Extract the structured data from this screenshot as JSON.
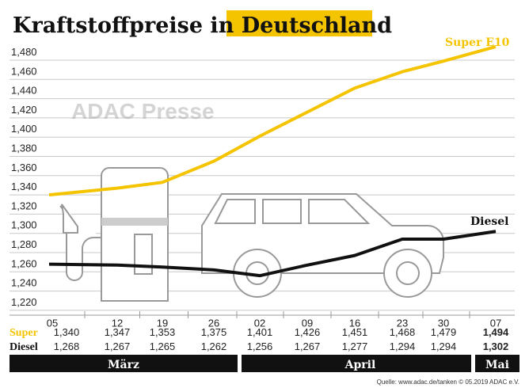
{
  "chart_data": {
    "type": "line",
    "title": "Kraftstoffpreise in ",
    "title_highlight": "Deutschland",
    "categories": [
      "05",
      "12",
      "19",
      "26",
      "02",
      "09",
      "16",
      "23",
      "30",
      "07"
    ],
    "months": [
      "März",
      "April",
      "Mai"
    ],
    "yticks": [
      "1,220",
      "1,240",
      "1,260",
      "1,280",
      "1,300",
      "1,320",
      "1,340",
      "1,360",
      "1,380",
      "1,400",
      "1,420",
      "1,440",
      "1,460",
      "1,480"
    ],
    "ylim": [
      1.22,
      1.48
    ],
    "grid": true,
    "series": [
      {
        "name": "Super E10",
        "table_label": "Super",
        "color": "#f5c400",
        "values": [
          1.34,
          1.347,
          1.353,
          1.375,
          1.401,
          1.426,
          1.451,
          1.468,
          1.479,
          1.494
        ],
        "labels": [
          "1,340",
          "1,347",
          "1,353",
          "1,375",
          "1,401",
          "1,426",
          "1,451",
          "1,468",
          "1,479",
          "1,494"
        ]
      },
      {
        "name": "Diesel",
        "table_label": "Diesel",
        "color": "#111111",
        "values": [
          1.268,
          1.267,
          1.265,
          1.262,
          1.256,
          1.267,
          1.277,
          1.294,
          1.294,
          1.302
        ],
        "labels": [
          "1,268",
          "1,267",
          "1,265",
          "1,262",
          "1,256",
          "1,267",
          "1,277",
          "1,294",
          "1,294",
          "1,302"
        ]
      }
    ],
    "watermark": "ADAC Presse",
    "source": "Quelle: www.adac.de/tanken   © 05.2019  ADAC e.V."
  }
}
